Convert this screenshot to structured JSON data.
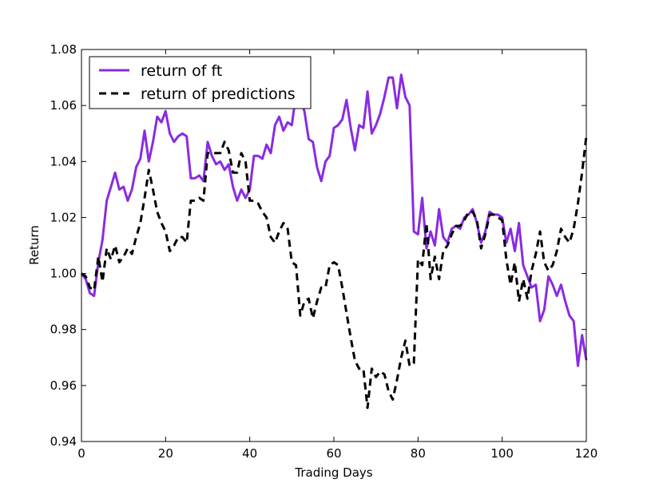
{
  "chart_data": {
    "type": "line",
    "title": "",
    "xlabel": "Trading Days",
    "ylabel": "Return",
    "xlim": [
      0,
      120
    ],
    "ylim": [
      0.94,
      1.08
    ],
    "xticks": [
      "0",
      "20",
      "40",
      "60",
      "80",
      "100",
      "120"
    ],
    "yticks": [
      "0.94",
      "0.96",
      "0.98",
      "1.00",
      "1.02",
      "1.04",
      "1.06",
      "1.08"
    ],
    "grid": false,
    "legend_position": "top-left",
    "series": [
      {
        "name": "return of ft",
        "color": "#8a2be2",
        "style": "solid",
        "x": [
          0,
          1,
          2,
          3,
          4,
          5,
          6,
          7,
          8,
          9,
          10,
          11,
          12,
          13,
          14,
          15,
          16,
          17,
          18,
          19,
          20,
          21,
          22,
          23,
          24,
          25,
          26,
          27,
          28,
          29,
          30,
          31,
          32,
          33,
          34,
          35,
          36,
          37,
          38,
          39,
          40,
          41,
          42,
          43,
          44,
          45,
          46,
          47,
          48,
          49,
          50,
          51,
          52,
          53,
          54,
          55,
          56,
          57,
          58,
          59,
          60,
          61,
          62,
          63,
          64,
          65,
          66,
          67,
          68,
          69,
          70,
          71,
          72,
          73,
          74,
          75,
          76,
          77,
          78,
          79,
          80,
          81,
          82,
          83,
          84,
          85,
          86,
          87,
          88,
          89,
          90,
          91,
          92,
          93,
          94,
          95,
          96,
          97,
          98,
          99,
          100,
          101,
          102,
          103,
          104,
          105,
          106,
          107,
          108,
          109,
          110,
          111,
          112,
          113,
          114,
          115,
          116,
          117,
          118,
          119,
          120
        ],
        "values": [
          1.0,
          0.998,
          0.993,
          0.992,
          1.004,
          1.012,
          1.026,
          1.031,
          1.036,
          1.03,
          1.031,
          1.026,
          1.03,
          1.038,
          1.041,
          1.051,
          1.04,
          1.047,
          1.056,
          1.054,
          1.058,
          1.05,
          1.047,
          1.049,
          1.05,
          1.049,
          1.034,
          1.034,
          1.035,
          1.033,
          1.047,
          1.042,
          1.039,
          1.04,
          1.037,
          1.039,
          1.031,
          1.026,
          1.03,
          1.027,
          1.03,
          1.042,
          1.042,
          1.041,
          1.046,
          1.043,
          1.053,
          1.056,
          1.051,
          1.054,
          1.053,
          1.064,
          1.062,
          1.058,
          1.048,
          1.047,
          1.038,
          1.033,
          1.04,
          1.042,
          1.052,
          1.053,
          1.055,
          1.062,
          1.052,
          1.044,
          1.053,
          1.052,
          1.065,
          1.05,
          1.053,
          1.057,
          1.063,
          1.07,
          1.07,
          1.059,
          1.071,
          1.063,
          1.06,
          1.015,
          1.014,
          1.027,
          1.009,
          1.015,
          1.01,
          1.023,
          1.013,
          1.011,
          1.016,
          1.017,
          1.016,
          1.02,
          1.021,
          1.023,
          1.018,
          1.011,
          1.015,
          1.022,
          1.021,
          1.021,
          1.02,
          1.011,
          1.016,
          1.008,
          1.018,
          1.003,
          0.999,
          0.995,
          0.996,
          0.983,
          0.987,
          0.999,
          0.996,
          0.992,
          0.996,
          0.99,
          0.985,
          0.983,
          0.967,
          0.978,
          0.969
        ]
      },
      {
        "name": "return of predictions",
        "color": "#000000",
        "style": "dashed",
        "x": [
          0,
          1,
          2,
          3,
          4,
          5,
          6,
          7,
          8,
          9,
          10,
          11,
          12,
          13,
          14,
          15,
          16,
          17,
          18,
          19,
          20,
          21,
          22,
          23,
          24,
          25,
          26,
          27,
          28,
          29,
          30,
          31,
          32,
          33,
          34,
          35,
          36,
          37,
          38,
          39,
          40,
          41,
          42,
          43,
          44,
          45,
          46,
          47,
          48,
          49,
          50,
          51,
          52,
          53,
          54,
          55,
          56,
          57,
          58,
          59,
          60,
          61,
          62,
          63,
          64,
          65,
          66,
          67,
          68,
          69,
          70,
          71,
          72,
          73,
          74,
          75,
          76,
          77,
          78,
          79,
          80,
          81,
          82,
          83,
          84,
          85,
          86,
          87,
          88,
          89,
          90,
          91,
          92,
          93,
          94,
          95,
          96,
          97,
          98,
          99,
          100,
          101,
          102,
          103,
          104,
          105,
          106,
          107,
          108,
          109,
          110,
          111,
          112,
          113,
          114,
          115,
          116,
          117,
          118,
          119,
          120
        ],
        "values": [
          1.0,
          0.999,
          0.995,
          0.994,
          1.006,
          0.997,
          1.009,
          1.005,
          1.01,
          1.004,
          1.006,
          1.009,
          1.007,
          1.013,
          1.018,
          1.027,
          1.037,
          1.03,
          1.022,
          1.018,
          1.015,
          1.008,
          1.01,
          1.013,
          1.013,
          1.011,
          1.026,
          1.026,
          1.027,
          1.026,
          1.043,
          1.043,
          1.043,
          1.043,
          1.047,
          1.044,
          1.036,
          1.036,
          1.043,
          1.04,
          1.026,
          1.026,
          1.025,
          1.022,
          1.02,
          1.013,
          1.011,
          1.015,
          1.018,
          1.016,
          1.004,
          1.003,
          0.985,
          0.99,
          0.991,
          0.984,
          0.99,
          0.995,
          0.995,
          1.003,
          1.004,
          1.003,
          0.995,
          0.986,
          0.977,
          0.969,
          0.966,
          0.966,
          0.952,
          0.966,
          0.963,
          0.965,
          0.964,
          0.958,
          0.955,
          0.962,
          0.97,
          0.976,
          0.967,
          0.968,
          1.005,
          1.003,
          1.018,
          0.998,
          1.006,
          0.998,
          1.008,
          1.01,
          1.014,
          1.017,
          1.017,
          1.019,
          1.022,
          1.022,
          1.019,
          1.009,
          1.014,
          1.021,
          1.021,
          1.02,
          1.019,
          1.005,
          0.996,
          1.004,
          0.99,
          0.998,
          0.991,
          1.001,
          1.007,
          1.015,
          1.004,
          1.001,
          1.003,
          1.008,
          1.016,
          1.013,
          1.011,
          1.016,
          1.025,
          1.036,
          1.049
        ]
      }
    ]
  }
}
